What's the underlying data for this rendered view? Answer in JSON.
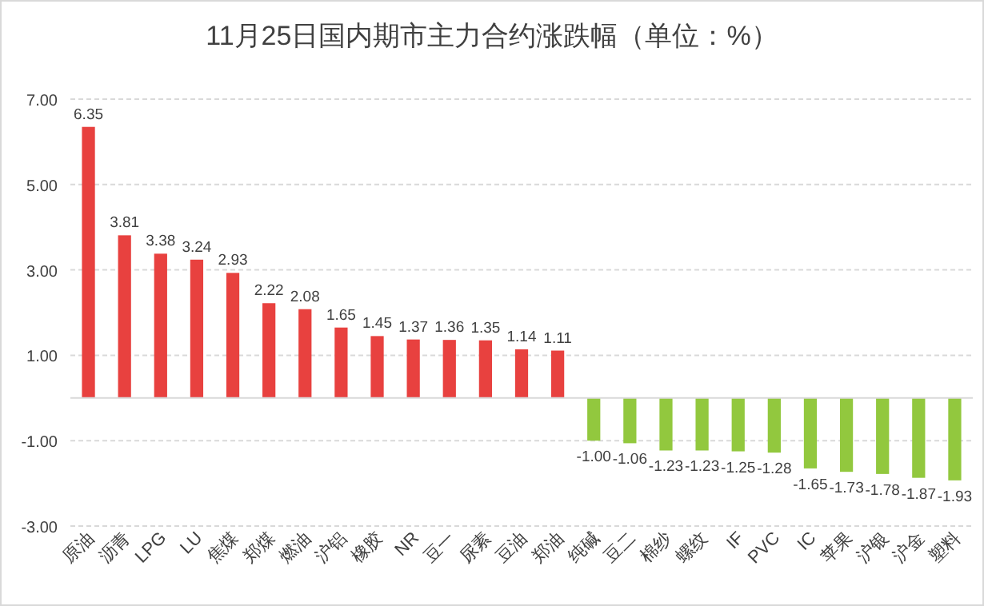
{
  "chart_data": {
    "type": "bar",
    "title": "11月25日国内期市主力合约涨跌幅（单位：%）",
    "categories": [
      "原油",
      "沥青",
      "LPG",
      "LU",
      "焦煤",
      "郑煤",
      "燃油",
      "沪铝",
      "橡胶",
      "NR",
      "豆一",
      "尿素",
      "豆油",
      "郑油",
      "纯碱",
      "豆二",
      "棉纱",
      "螺纹",
      "IF",
      "PVC",
      "IC",
      "苹果",
      "沪银",
      "沪金",
      "塑料"
    ],
    "values": [
      6.35,
      3.81,
      3.38,
      3.24,
      2.93,
      2.22,
      2.08,
      1.65,
      1.45,
      1.37,
      1.36,
      1.35,
      1.14,
      1.11,
      -1.0,
      -1.06,
      -1.23,
      -1.23,
      -1.25,
      -1.28,
      -1.65,
      -1.73,
      -1.78,
      -1.87,
      -1.93
    ],
    "colors": [
      "#e8413f",
      "#e8413f",
      "#e8413f",
      "#e8413f",
      "#e8413f",
      "#e8413f",
      "#e8413f",
      "#e8413f",
      "#e8413f",
      "#e8413f",
      "#e8413f",
      "#e8413f",
      "#e8413f",
      "#e8413f",
      "#92c83e",
      "#92c83e",
      "#92c83e",
      "#92c83e",
      "#92c83e",
      "#92c83e",
      "#92c83e",
      "#92c83e",
      "#92c83e",
      "#92c83e",
      "#92c83e"
    ],
    "value_labels": [
      "6.35",
      "3.81",
      "3.38",
      "3.24",
      "2.93",
      "2.22",
      "2.08",
      "1.65",
      "1.45",
      "1.37",
      "1.36",
      "1.35",
      "1.14",
      "1.11",
      "-1.00",
      "-1.06",
      "-1.23",
      "-1.23",
      "-1.25",
      "-1.28",
      "-1.65",
      "-1.73",
      "-1.78",
      "-1.87",
      "-1.93"
    ],
    "ylim": [
      -3,
      7
    ],
    "yticks": [
      {
        "value": 7,
        "label": "7.00"
      },
      {
        "value": 5,
        "label": "5.00"
      },
      {
        "value": 3,
        "label": "3.00"
      },
      {
        "value": 1,
        "label": "1.00"
      },
      {
        "value": -1,
        "label": "-1.00"
      },
      {
        "value": -3,
        "label": "-3.00"
      }
    ],
    "grid": "y"
  }
}
